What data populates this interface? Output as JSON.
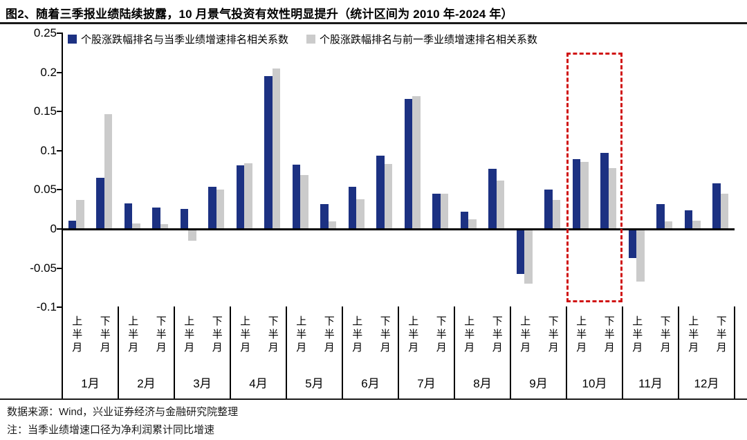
{
  "title": "图2、随着三季报业绩陆续披露，10 月景气投资有效性明显提升（统计区间为 2010 年-2024 年）",
  "legend": {
    "items": [
      {
        "label": "个股涨跌幅排名与当季业绩增速排名相关系数",
        "color": "#1c3182"
      },
      {
        "label": "个股涨跌幅排名与前一季业绩增速排名相关系数",
        "color": "#cbcbcb"
      }
    ]
  },
  "footer": {
    "source": "数据来源：Wind，兴业证券经济与金融研究院整理",
    "note": "注：当季业绩增速口径为净利润累计同比增速"
  },
  "colors": {
    "series_blue": "#1c3182",
    "series_gray": "#cbcbcb",
    "highlight_red": "#d01111",
    "axis": "#000000"
  },
  "chart_data": {
    "type": "bar",
    "title": "图2、随着三季报业绩陆续披露，10 月景气投资有效性明显提升（统计区间为 2010 年-2024 年）",
    "months": [
      "1月",
      "2月",
      "3月",
      "4月",
      "5月",
      "6月",
      "7月",
      "8月",
      "9月",
      "10月",
      "11月",
      "12月"
    ],
    "half_month_labels": [
      "上半月",
      "下半月"
    ],
    "series": [
      {
        "name": "个股涨跌幅排名与当季业绩增速排名相关系数",
        "color": "#1c3182",
        "values": [
          0.011,
          0.065,
          0.033,
          0.027,
          0.026,
          0.054,
          0.081,
          0.195,
          0.082,
          0.032,
          0.054,
          0.094,
          0.166,
          0.045,
          0.022,
          0.077,
          -0.056,
          0.05,
          0.089,
          0.097,
          -0.035,
          0.032,
          0.024,
          0.058
        ]
      },
      {
        "name": "个股涨跌幅排名与前一季业绩增速排名相关系数",
        "color": "#cbcbcb",
        "values": [
          0.037,
          0.147,
          0.007,
          0.006,
          -0.013,
          0.05,
          0.084,
          0.205,
          0.069,
          0.01,
          0.038,
          0.083,
          0.17,
          0.045,
          0.012,
          0.062,
          -0.068,
          0.037,
          0.086,
          0.078,
          -0.065,
          0.01,
          0.011,
          0.045
        ]
      }
    ],
    "ylim": [
      -0.1,
      0.25
    ],
    "yticks": [
      {
        "value": 0.25,
        "label": "0.25"
      },
      {
        "value": 0.2,
        "label": "0.2"
      },
      {
        "value": 0.15,
        "label": "0.15"
      },
      {
        "value": 0.1,
        "label": "0.1"
      },
      {
        "value": 0.05,
        "label": "0.05"
      },
      {
        "value": 0,
        "label": "0"
      },
      {
        "value": -0.05,
        "label": "-0.05"
      },
      {
        "value": -0.1,
        "label": "-0.1"
      }
    ],
    "grid": false,
    "legend_position": "top",
    "highlight": {
      "month": "10月",
      "month_index": 9,
      "style": "red-dashed-rectangle"
    }
  }
}
